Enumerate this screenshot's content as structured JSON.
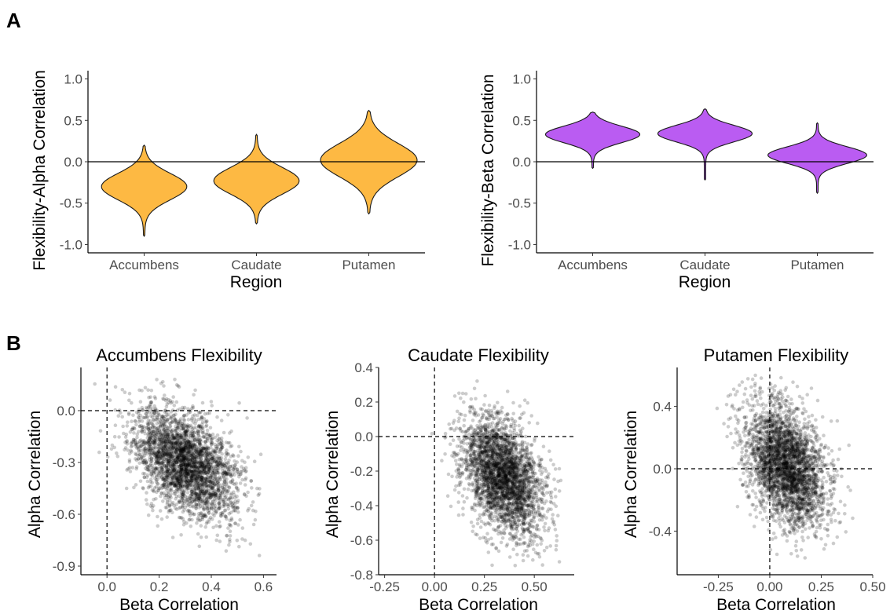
{
  "panel_labels": [
    "A",
    "B"
  ],
  "colors": {
    "alpha_violin": "#FDB943",
    "beta_violin": "#BA5CF2",
    "points": "#000000"
  },
  "chart_data": [
    {
      "type": "violin",
      "panel": "A",
      "xlabel": "Region",
      "ylabel": "Flexibility-Alpha Correlation",
      "categories": [
        "Accumbens",
        "Caudate",
        "Putamen"
      ],
      "ylim": [
        -1.1,
        1.1
      ],
      "yticks": [
        1.0,
        0.5,
        0.0,
        -0.5,
        -1.0
      ],
      "ytick_labels": [
        "1.0",
        "0.5",
        "0.0",
        "-0.5",
        "-1.0"
      ],
      "hline": 0,
      "fill": "#FDB943",
      "violins": [
        {
          "name": "Accumbens",
          "min": -0.9,
          "max": 0.2,
          "mode": -0.3,
          "spread": 0.16,
          "halfwidth": 0.38
        },
        {
          "name": "Caudate",
          "min": -0.75,
          "max": 0.33,
          "mode": -0.23,
          "spread": 0.16,
          "halfwidth": 0.38
        },
        {
          "name": "Putamen",
          "min": -0.63,
          "max": 0.62,
          "mode": 0.02,
          "spread": 0.2,
          "halfwidth": 0.43
        }
      ]
    },
    {
      "type": "violin",
      "panel": "A",
      "xlabel": "Region",
      "ylabel": "Flexibility-Beta Correlation",
      "categories": [
        "Accumbens",
        "Caudate",
        "Putamen"
      ],
      "ylim": [
        -1.1,
        1.1
      ],
      "yticks": [
        1.0,
        0.5,
        0.0,
        -0.5,
        -1.0
      ],
      "ytick_labels": [
        "1.0",
        "0.5",
        "0.0",
        "-0.5",
        "-1.0"
      ],
      "hline": 0,
      "fill": "#BA5CF2",
      "violins": [
        {
          "name": "Accumbens",
          "min": -0.08,
          "max": 0.6,
          "mode": 0.33,
          "spread": 0.1,
          "halfwidth": 0.42
        },
        {
          "name": "Caudate",
          "min": -0.22,
          "max": 0.64,
          "mode": 0.34,
          "spread": 0.1,
          "halfwidth": 0.42
        },
        {
          "name": "Putamen",
          "min": -0.38,
          "max": 0.47,
          "mode": 0.08,
          "spread": 0.1,
          "halfwidth": 0.44
        }
      ]
    },
    {
      "type": "scatter",
      "panel": "B",
      "title": "Accumbens Flexibility",
      "xlabel": "Beta Correlation",
      "ylabel": "Alpha Correlation",
      "xlim": [
        -0.1,
        0.65
      ],
      "ylim": [
        -0.95,
        0.25
      ],
      "xticks": [
        0.0,
        0.2,
        0.4,
        0.6
      ],
      "xtick_labels": [
        "0.0",
        "0.2",
        "0.4",
        "0.6"
      ],
      "yticks": [
        0.0,
        -0.3,
        -0.6,
        -0.9
      ],
      "ytick_labels": [
        "0.0",
        "-0.3",
        "-0.6",
        "-0.9"
      ],
      "vline": 0,
      "hline": 0,
      "cloud": {
        "n": 3000,
        "mean_x": 0.3,
        "mean_y": -0.3,
        "sd_x": 0.1,
        "sd_y": 0.16,
        "corr": -0.45,
        "x_range": [
          -0.05,
          0.6
        ],
        "y_range": [
          -0.9,
          0.2
        ],
        "seed": 11
      }
    },
    {
      "type": "scatter",
      "panel": "B",
      "title": "Caudate Flexibility",
      "xlabel": "Beta Correlation",
      "ylabel": "Alpha Correlation",
      "xlim": [
        -0.28,
        0.7
      ],
      "ylim": [
        -0.8,
        0.4
      ],
      "xticks": [
        -0.25,
        0.0,
        0.25,
        0.5
      ],
      "xtick_labels": [
        "-0.25",
        "0.00",
        "0.25",
        "0.50"
      ],
      "yticks": [
        0.4,
        0.2,
        0.0,
        -0.2,
        -0.4,
        -0.6,
        -0.8
      ],
      "ytick_labels": [
        "0.4",
        "0.2",
        "0.0",
        "-0.2",
        "-0.4",
        "-0.6",
        "-0.8"
      ],
      "vline": 0,
      "hline": 0,
      "cloud": {
        "n": 3000,
        "mean_x": 0.34,
        "mean_y": -0.23,
        "sd_x": 0.1,
        "sd_y": 0.17,
        "corr": -0.4,
        "x_range": [
          -0.22,
          0.66
        ],
        "y_range": [
          -0.75,
          0.33
        ],
        "seed": 23
      }
    },
    {
      "type": "scatter",
      "panel": "B",
      "title": "Putamen Flexibility",
      "xlabel": "Beta Correlation",
      "ylabel": "Alpha Correlation",
      "xlim": [
        -0.45,
        0.5
      ],
      "ylim": [
        -0.68,
        0.65
      ],
      "xticks": [
        -0.25,
        0.0,
        0.25,
        0.5
      ],
      "xtick_labels": [
        "-0.25",
        "0.00",
        "0.25",
        "0.50"
      ],
      "yticks": [
        0.4,
        0.0,
        -0.4
      ],
      "ytick_labels": [
        "0.4",
        "0.0",
        "-0.4"
      ],
      "vline": 0,
      "hline": 0,
      "cloud": {
        "n": 3000,
        "mean_x": 0.08,
        "mean_y": 0.02,
        "sd_x": 0.1,
        "sd_y": 0.2,
        "corr": -0.35,
        "x_range": [
          -0.4,
          0.47
        ],
        "y_range": [
          -0.63,
          0.62
        ],
        "seed": 37
      }
    }
  ]
}
